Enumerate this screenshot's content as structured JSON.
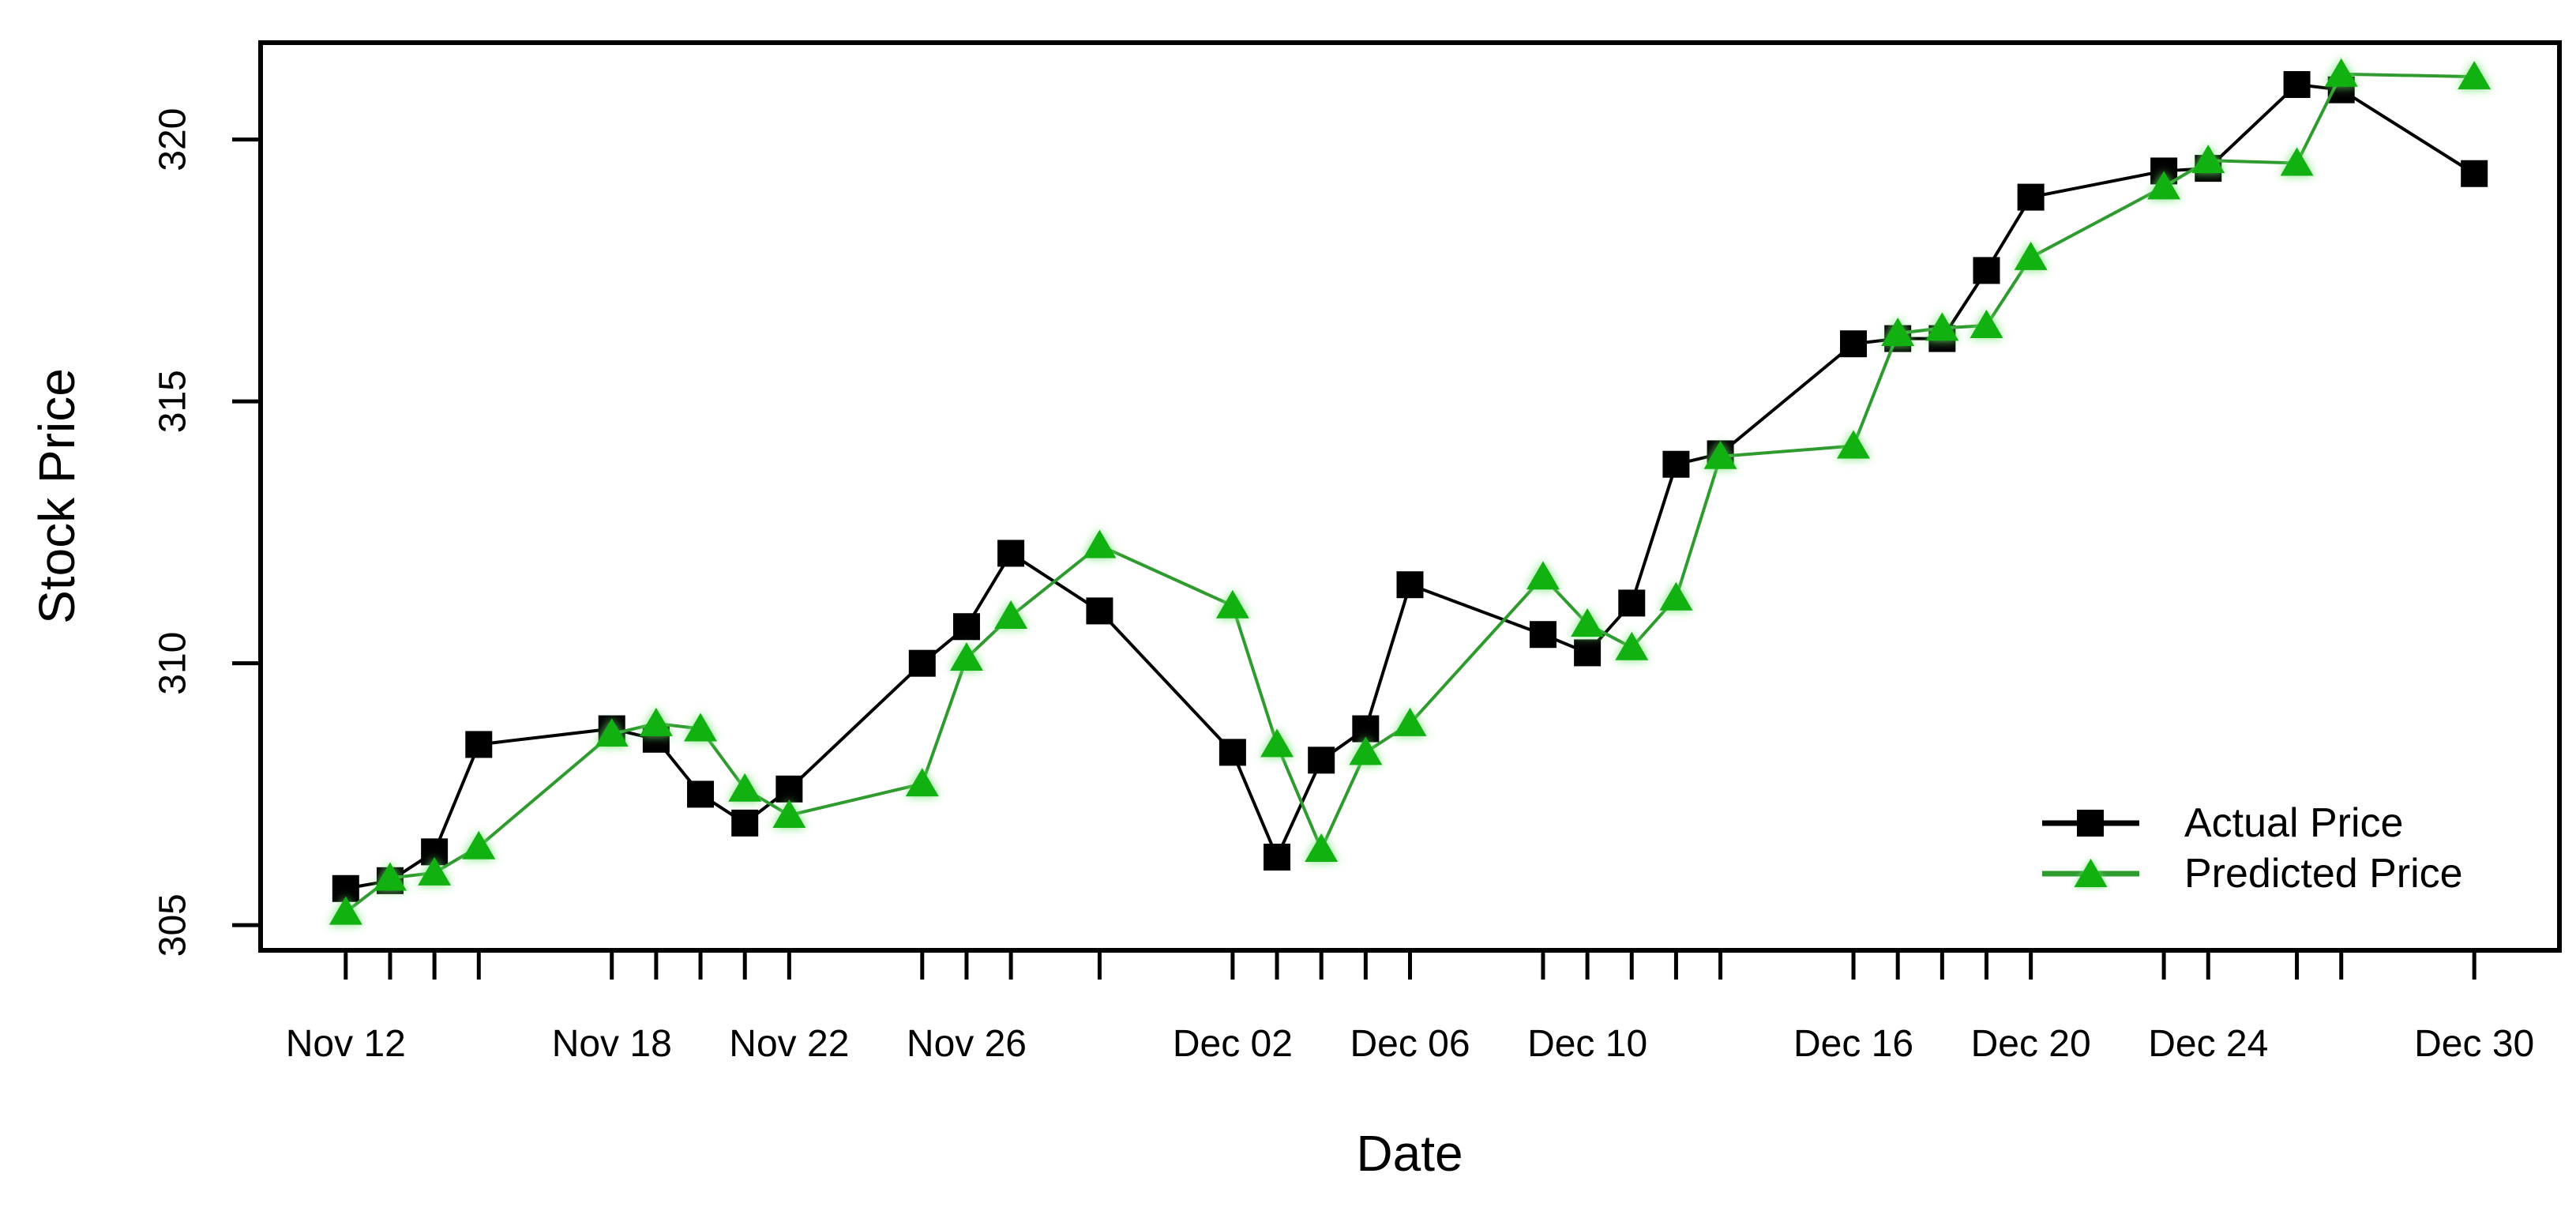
{
  "figure": {
    "background": "#ffffff"
  },
  "chart_data": {
    "type": "line",
    "title": "",
    "xlabel": "Date",
    "ylabel": "Stock Price",
    "grid": false,
    "legend_position": "bottom-right",
    "x_dates": [
      "Nov 12",
      "Nov 13",
      "Nov 14",
      "Nov 15",
      "Nov 18",
      "Nov 19",
      "Nov 20",
      "Nov 21",
      "Nov 22",
      "Nov 25",
      "Nov 26",
      "Nov 27",
      "Nov 29",
      "Dec 02",
      "Dec 03",
      "Dec 04",
      "Dec 05",
      "Dec 06",
      "Dec 09",
      "Dec 10",
      "Dec 11",
      "Dec 12",
      "Dec 13",
      "Dec 16",
      "Dec 17",
      "Dec 18",
      "Dec 19",
      "Dec 20",
      "Dec 23",
      "Dec 24",
      "Dec 26",
      "Dec 27",
      "Dec 30"
    ],
    "day_offsets": [
      0,
      1,
      2,
      3,
      6,
      7,
      8,
      9,
      10,
      13,
      14,
      15,
      17,
      20,
      21,
      22,
      23,
      24,
      27,
      28,
      29,
      30,
      31,
      34,
      35,
      36,
      37,
      38,
      41,
      42,
      44,
      45,
      48
    ],
    "series": [
      {
        "name": "Actual Price",
        "marker": "square",
        "line_color": "#000000",
        "marker_color": "#000000",
        "values": [
          305.7,
          305.85,
          306.4,
          308.45,
          308.75,
          308.55,
          307.5,
          306.95,
          307.6,
          310.0,
          310.7,
          312.1,
          311.0,
          308.3,
          306.3,
          308.15,
          308.75,
          311.5,
          310.55,
          310.2,
          311.15,
          313.8,
          314.0,
          316.1,
          316.2,
          316.2,
          317.5,
          318.9,
          319.4,
          319.45,
          321.05,
          320.95,
          319.35
        ]
      },
      {
        "name": "Predicted Price",
        "marker": "triangle",
        "line_color": "#2f9b2f",
        "marker_color": "#12b112",
        "values": [
          305.25,
          305.9,
          306.0,
          306.5,
          308.65,
          308.85,
          308.75,
          307.6,
          307.1,
          307.7,
          310.1,
          310.9,
          312.25,
          311.1,
          308.45,
          306.45,
          308.3,
          308.85,
          311.65,
          310.75,
          310.3,
          311.25,
          313.95,
          314.15,
          316.3,
          316.4,
          316.45,
          317.75,
          319.1,
          319.6,
          319.55,
          321.25,
          321.2
        ]
      }
    ],
    "x_axis": {
      "labeled_ticks": [
        {
          "label": "Nov 12",
          "day": 0
        },
        {
          "label": "Nov 18",
          "day": 6
        },
        {
          "label": "Nov 22",
          "day": 10
        },
        {
          "label": "Nov 26",
          "day": 14
        },
        {
          "label": "Dec 02",
          "day": 20
        },
        {
          "label": "Dec 06",
          "day": 24
        },
        {
          "label": "Dec 10",
          "day": 28
        },
        {
          "label": "Dec 16",
          "day": 34
        },
        {
          "label": "Dec 20",
          "day": 38
        },
        {
          "label": "Dec 24",
          "day": 42
        },
        {
          "label": "Dec 30",
          "day": 48
        }
      ]
    },
    "y_axis": {
      "ticks": [
        305,
        310,
        315,
        320
      ],
      "range": [
        304.5,
        321.9
      ]
    },
    "legend": {
      "entries": [
        "Actual Price",
        "Predicted Price"
      ]
    }
  }
}
